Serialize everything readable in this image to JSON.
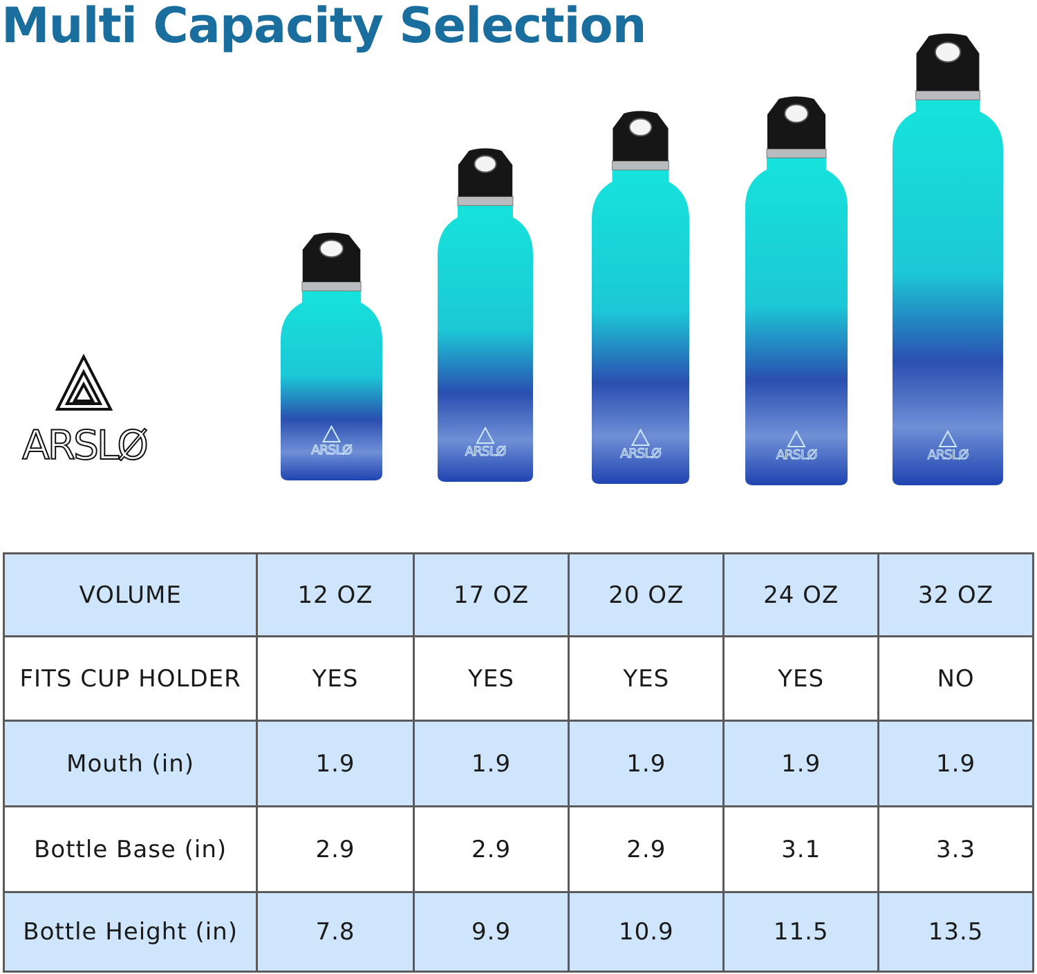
{
  "title": "Multi Capacity Selection",
  "brand": "ARSLØ",
  "table": {
    "rows": [
      [
        "VOLUME",
        "12 OZ",
        "17 OZ",
        "20 OZ",
        "24 OZ",
        "32 OZ"
      ],
      [
        "FITS CUP HOLDER",
        "YES",
        "YES",
        "YES",
        "YES",
        "NO"
      ],
      [
        "Mouth (in)",
        "1.9",
        "1.9",
        "1.9",
        "1.9",
        "1.9"
      ],
      [
        "Bottle Base (in)",
        "2.9",
        "2.9",
        "2.9",
        "3.1",
        "3.3"
      ],
      [
        "Bottle Height (in)",
        "7.8",
        "9.9",
        "10.9",
        "11.5",
        "13.5"
      ]
    ]
  }
}
